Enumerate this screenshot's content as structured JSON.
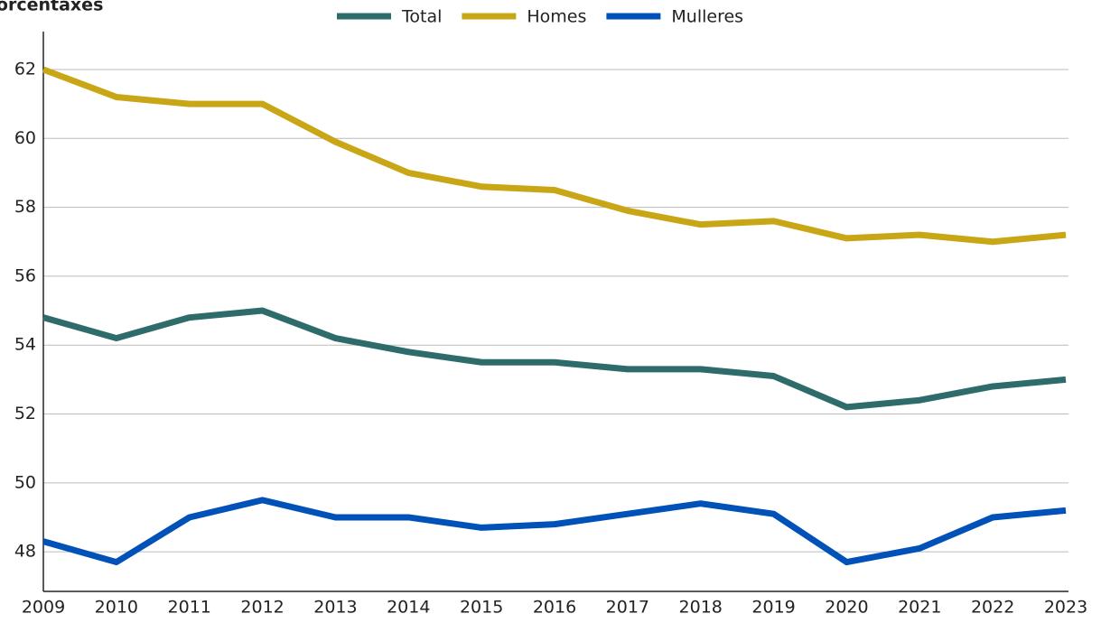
{
  "chart_data": {
    "type": "line",
    "y_label": "Porcentaxes",
    "categories": [
      "2009",
      "2010",
      "2011",
      "2012",
      "2013",
      "2014",
      "2015",
      "2016",
      "2017",
      "2018",
      "2019",
      "2020",
      "2021",
      "2022",
      "2023"
    ],
    "series": [
      {
        "name": "Total",
        "color": "#2e6b6b",
        "values": [
          54.8,
          54.2,
          54.8,
          55.0,
          54.2,
          53.8,
          53.5,
          53.5,
          53.3,
          53.3,
          53.1,
          52.2,
          52.4,
          52.8,
          53.0
        ]
      },
      {
        "name": "Homes",
        "color": "#c9a616",
        "values": [
          62.0,
          61.2,
          61.0,
          61.0,
          59.9,
          59.0,
          58.6,
          58.5,
          57.9,
          57.5,
          57.6,
          57.1,
          57.2,
          57.0,
          57.2
        ]
      },
      {
        "name": "Mulleres",
        "color": "#0051b8",
        "values": [
          48.3,
          47.7,
          49.0,
          49.5,
          49.0,
          49.0,
          48.7,
          48.8,
          49.1,
          49.4,
          49.1,
          47.7,
          48.1,
          49.0,
          49.2
        ]
      }
    ],
    "ylim": [
      46.85,
      63.1
    ],
    "yticks": [
      48,
      50,
      52,
      54,
      56,
      58,
      60,
      62
    ],
    "grid": true,
    "legend": "top"
  }
}
